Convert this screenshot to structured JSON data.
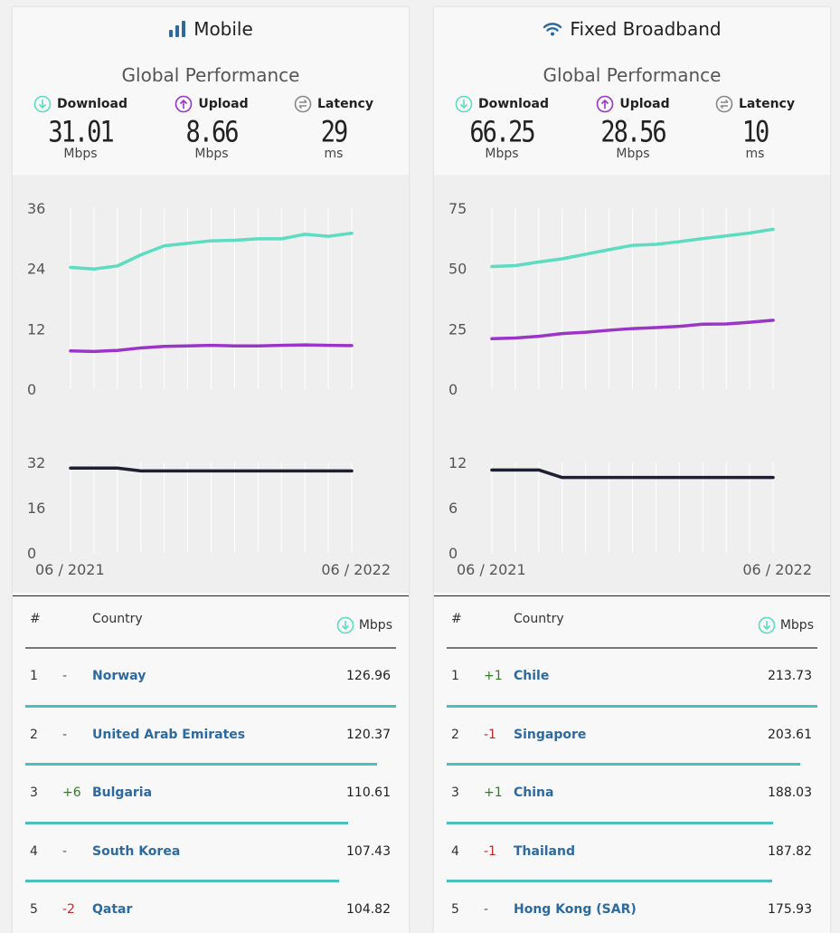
{
  "colors": {
    "download": "#5cdcc0",
    "upload": "#9a35c8",
    "latency": "#1f1f33",
    "rank_bar": "#4bbfbf",
    "link": "#2c6aa0"
  },
  "panels": [
    {
      "id": "mobile",
      "title": "Mobile",
      "icon": "signal-bars-icon",
      "subtitle": "Global Performance",
      "metrics": [
        {
          "label": "Download",
          "value": "31.01",
          "unit": "Mbps",
          "icon": "download-arrow-icon"
        },
        {
          "label": "Upload",
          "value": "8.66",
          "unit": "Mbps",
          "icon": "upload-arrow-icon"
        },
        {
          "label": "Latency",
          "value": "29",
          "unit": "ms",
          "icon": "latency-icon"
        }
      ],
      "table": {
        "headers": {
          "rank": "#",
          "country": "Country",
          "speed": "Mbps"
        },
        "max": 126.96,
        "rows": [
          {
            "rank": "1",
            "change": "-",
            "country": "Norway",
            "speed": "126.96"
          },
          {
            "rank": "2",
            "change": "-",
            "country": "United Arab Emirates",
            "speed": "120.37"
          },
          {
            "rank": "3",
            "change": "+6",
            "country": "Bulgaria",
            "speed": "110.61"
          },
          {
            "rank": "4",
            "change": "-",
            "country": "South Korea",
            "speed": "107.43"
          },
          {
            "rank": "5",
            "change": "-2",
            "country": "Qatar",
            "speed": "104.82"
          }
        ]
      }
    },
    {
      "id": "fixed",
      "title": "Fixed Broadband",
      "icon": "wifi-icon",
      "subtitle": "Global Performance",
      "metrics": [
        {
          "label": "Download",
          "value": "66.25",
          "unit": "Mbps",
          "icon": "download-arrow-icon"
        },
        {
          "label": "Upload",
          "value": "28.56",
          "unit": "Mbps",
          "icon": "upload-arrow-icon"
        },
        {
          "label": "Latency",
          "value": "10",
          "unit": "ms",
          "icon": "latency-icon"
        }
      ],
      "table": {
        "headers": {
          "rank": "#",
          "country": "Country",
          "speed": "Mbps"
        },
        "max": 213.73,
        "rows": [
          {
            "rank": "1",
            "change": "+1",
            "country": "Chile",
            "speed": "213.73"
          },
          {
            "rank": "2",
            "change": "-1",
            "country": "Singapore",
            "speed": "203.61"
          },
          {
            "rank": "3",
            "change": "+1",
            "country": "China",
            "speed": "188.03"
          },
          {
            "rank": "4",
            "change": "-1",
            "country": "Thailand",
            "speed": "187.82"
          },
          {
            "rank": "5",
            "change": "-",
            "country": "Hong Kong (SAR)",
            "speed": "175.93"
          }
        ]
      }
    }
  ],
  "chart_data": [
    {
      "type": "line",
      "panel": "mobile",
      "chart": "speed",
      "x": [
        "06 / 2021",
        "07 / 2021",
        "08 / 2021",
        "09 / 2021",
        "10 / 2021",
        "11 / 2021",
        "12 / 2021",
        "01 / 2022",
        "02 / 2022",
        "03 / 2022",
        "04 / 2022",
        "05 / 2022",
        "06 / 2022"
      ],
      "yticks": [
        0,
        12,
        24,
        36
      ],
      "ylim": [
        0,
        36
      ],
      "grid": true,
      "series": [
        {
          "name": "Download",
          "values": [
            24.2,
            23.9,
            24.5,
            26.7,
            28.5,
            29.0,
            29.5,
            29.6,
            29.9,
            29.9,
            30.8,
            30.4,
            31.01
          ]
        },
        {
          "name": "Upload",
          "values": [
            7.6,
            7.5,
            7.7,
            8.2,
            8.5,
            8.6,
            8.7,
            8.6,
            8.6,
            8.7,
            8.8,
            8.7,
            8.66
          ]
        }
      ]
    },
    {
      "type": "line",
      "panel": "mobile",
      "chart": "latency",
      "x": [
        "06 / 2021",
        "07 / 2021",
        "08 / 2021",
        "09 / 2021",
        "10 / 2021",
        "11 / 2021",
        "12 / 2021",
        "01 / 2022",
        "02 / 2022",
        "03 / 2022",
        "04 / 2022",
        "05 / 2022",
        "06 / 2022"
      ],
      "xtick_labels": [
        "06 / 2021",
        "06 / 2022"
      ],
      "yticks": [
        0,
        16,
        32
      ],
      "ylim": [
        0,
        32
      ],
      "grid": true,
      "series": [
        {
          "name": "Latency",
          "values": [
            30,
            30,
            30,
            29,
            29,
            29,
            29,
            29,
            29,
            29,
            29,
            29,
            29
          ]
        }
      ]
    },
    {
      "type": "line",
      "panel": "fixed",
      "chart": "speed",
      "x": [
        "06 / 2021",
        "07 / 2021",
        "08 / 2021",
        "09 / 2021",
        "10 / 2021",
        "11 / 2021",
        "12 / 2021",
        "01 / 2022",
        "02 / 2022",
        "03 / 2022",
        "04 / 2022",
        "05 / 2022",
        "06 / 2022"
      ],
      "yticks": [
        0,
        25,
        50,
        75
      ],
      "ylim": [
        0,
        75
      ],
      "grid": true,
      "series": [
        {
          "name": "Download",
          "values": [
            50.8,
            51.2,
            52.7,
            54.0,
            55.9,
            57.8,
            59.6,
            60.0,
            61.1,
            62.4,
            63.5,
            64.7,
            66.25
          ]
        },
        {
          "name": "Upload",
          "values": [
            20.9,
            21.2,
            21.9,
            23.0,
            23.6,
            24.4,
            25.1,
            25.5,
            26.0,
            26.9,
            27.0,
            27.7,
            28.56
          ]
        }
      ]
    },
    {
      "type": "line",
      "panel": "fixed",
      "chart": "latency",
      "x": [
        "06 / 2021",
        "07 / 2021",
        "08 / 2021",
        "09 / 2021",
        "10 / 2021",
        "11 / 2021",
        "12 / 2021",
        "01 / 2022",
        "02 / 2022",
        "03 / 2022",
        "04 / 2022",
        "05 / 2022",
        "06 / 2022"
      ],
      "xtick_labels": [
        "06 / 2021",
        "06 / 2022"
      ],
      "yticks": [
        0,
        6,
        12
      ],
      "ylim": [
        0,
        12
      ],
      "grid": true,
      "series": [
        {
          "name": "Latency",
          "values": [
            11,
            11,
            11,
            10,
            10,
            10,
            10,
            10,
            10,
            10,
            10,
            10,
            10
          ]
        }
      ]
    }
  ]
}
